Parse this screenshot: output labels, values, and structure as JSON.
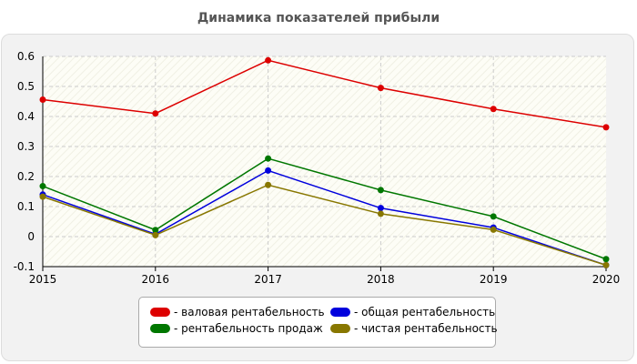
{
  "title": "Динамика показателей прибыли",
  "chart_data": {
    "type": "line",
    "title": "Динамика показателей прибыли",
    "xlabel": "",
    "ylabel": "",
    "x": [
      "2015",
      "2016",
      "2017",
      "2018",
      "2019",
      "2020"
    ],
    "yticks": [
      "0.6",
      "0.5",
      "0.4",
      "0.3",
      "0.2",
      "0.1",
      "0",
      "-0.1"
    ],
    "ylim": [
      -0.1,
      0.6
    ],
    "grid": true,
    "legend_position": "bottom",
    "series": [
      {
        "name": "- валовая рентабельность",
        "color": "#dd0000",
        "values": [
          0.456,
          0.41,
          0.587,
          0.495,
          0.425,
          0.364
        ]
      },
      {
        "name": "- общая рентабельность",
        "color": "#0000dd",
        "values": [
          0.14,
          0.008,
          0.22,
          0.095,
          0.03,
          -0.095
        ]
      },
      {
        "name": "- рентабельность продаж",
        "color": "#007700",
        "values": [
          0.168,
          0.022,
          0.26,
          0.155,
          0.067,
          -0.075
        ]
      },
      {
        "name": "- чистая рентабельность",
        "color": "#887700",
        "values": [
          0.133,
          0.005,
          0.172,
          0.076,
          0.023,
          -0.095
        ]
      }
    ]
  }
}
